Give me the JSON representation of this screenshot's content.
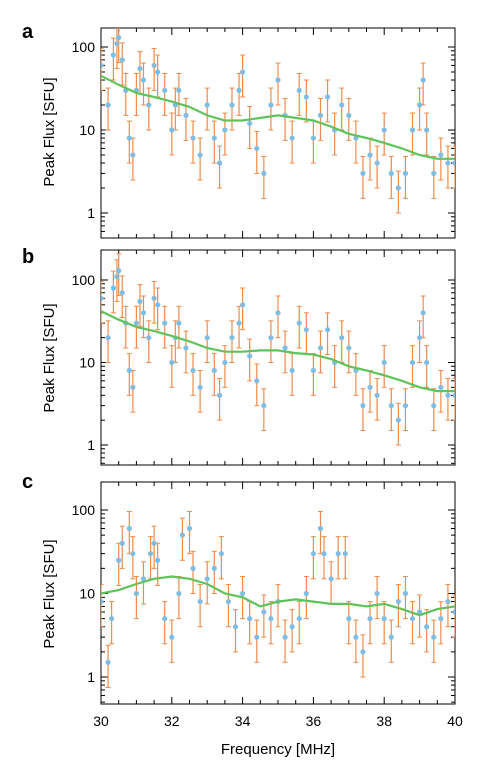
{
  "chart_data": [
    {
      "panel": "a",
      "type": "scatter",
      "xlabel": "",
      "ylabel": "Peak Flux [SFU]",
      "xlim": [
        30,
        40
      ],
      "ylim": [
        0.5,
        150
      ],
      "yscale": "log",
      "x_ticks": [
        30,
        32,
        34,
        36,
        38,
        40
      ],
      "y_tick_labels": [
        "1",
        "10",
        "100"
      ],
      "x_tick_labels_shown": false,
      "colors": {
        "points": "#7fbde3",
        "errorbars": "#ed8b4a",
        "trend": "#5fc25a"
      },
      "series": [
        {
          "name": "",
          "kind": "points",
          "x": [
            30.0,
            30.2,
            30.35,
            30.45,
            30.5,
            30.6,
            30.7,
            30.8,
            30.9,
            31.0,
            31.1,
            31.2,
            31.35,
            31.5,
            31.6,
            31.8,
            32.0,
            32.1,
            32.2,
            32.4,
            32.6,
            32.8,
            33.0,
            33.2,
            33.35,
            33.5,
            33.7,
            33.9,
            34.0,
            34.2,
            34.4,
            34.6,
            34.8,
            35.0,
            35.2,
            35.4,
            35.6,
            35.8,
            36.0,
            36.2,
            36.4,
            36.6,
            36.8,
            37.0,
            37.2,
            37.4,
            37.6,
            37.8,
            38.0,
            38.2,
            38.4,
            38.6,
            38.8,
            39.0,
            39.1,
            39.2,
            39.4,
            39.6,
            39.8,
            40.0
          ],
          "y": [
            60,
            20,
            80,
            110,
            130,
            70,
            30,
            8,
            5,
            30,
            55,
            40,
            20,
            60,
            50,
            30,
            10,
            20,
            30,
            15,
            8,
            5,
            20,
            8,
            4,
            10,
            20,
            30,
            50,
            12,
            6,
            3,
            20,
            40,
            15,
            8,
            30,
            25,
            8,
            15,
            25,
            10,
            20,
            15,
            8,
            3,
            5,
            4,
            10,
            3,
            2,
            3,
            10,
            20,
            40,
            10,
            3,
            5,
            4,
            4
          ]
        },
        {
          "name": "",
          "kind": "trend",
          "x": [
            30,
            30.5,
            31,
            31.5,
            32,
            32.5,
            33,
            33.5,
            34,
            34.5,
            35,
            35.5,
            36,
            36.5,
            37,
            37.5,
            38,
            38.5,
            39,
            39.5,
            40
          ],
          "y": [
            45,
            35,
            28,
            25,
            22,
            19,
            15,
            13,
            13,
            14,
            15,
            14,
            13,
            11,
            9,
            8,
            7,
            6,
            5,
            4.5,
            4.5
          ]
        }
      ]
    },
    {
      "panel": "b",
      "type": "scatter",
      "xlabel": "",
      "ylabel": "Peak Flux [SFU]",
      "xlim": [
        30,
        40
      ],
      "ylim": [
        0.5,
        150
      ],
      "yscale": "log",
      "x_ticks": [
        30,
        32,
        34,
        36,
        38,
        40
      ],
      "y_tick_labels": [
        "1",
        "10",
        "100"
      ],
      "x_tick_labels_shown": false,
      "colors": {
        "points": "#7fbde3",
        "errorbars": "#ed8b4a",
        "trend": "#5fc25a"
      },
      "series": [
        {
          "name": "",
          "kind": "points",
          "x": [
            30.0,
            30.2,
            30.35,
            30.45,
            30.5,
            30.6,
            30.7,
            30.8,
            30.9,
            31.0,
            31.1,
            31.2,
            31.35,
            31.5,
            31.6,
            31.8,
            32.0,
            32.1,
            32.2,
            32.4,
            32.6,
            32.8,
            33.0,
            33.2,
            33.35,
            33.5,
            33.7,
            33.9,
            34.0,
            34.2,
            34.4,
            34.6,
            34.8,
            35.0,
            35.2,
            35.4,
            35.6,
            35.8,
            36.0,
            36.2,
            36.4,
            36.6,
            36.8,
            37.0,
            37.2,
            37.4,
            37.6,
            37.8,
            38.0,
            38.2,
            38.4,
            38.6,
            38.8,
            39.0,
            39.1,
            39.2,
            39.4,
            39.6,
            39.8,
            40.0
          ],
          "y": [
            60,
            20,
            80,
            110,
            130,
            70,
            30,
            8,
            5,
            30,
            55,
            40,
            20,
            60,
            50,
            30,
            10,
            20,
            30,
            15,
            8,
            5,
            20,
            8,
            4,
            10,
            20,
            30,
            50,
            12,
            6,
            3,
            20,
            40,
            15,
            8,
            30,
            25,
            8,
            15,
            25,
            10,
            20,
            15,
            8,
            3,
            5,
            4,
            10,
            3,
            2,
            3,
            10,
            20,
            40,
            10,
            3,
            5,
            4,
            4
          ]
        },
        {
          "name": "",
          "kind": "trend",
          "x": [
            30,
            30.5,
            31,
            31.5,
            32,
            32.5,
            33,
            33.5,
            34,
            34.5,
            35,
            35.5,
            36,
            36.5,
            37,
            37.5,
            38,
            38.5,
            39,
            39.5,
            40
          ],
          "y": [
            42,
            33,
            27,
            24,
            21,
            18,
            15,
            13.5,
            13.5,
            14,
            14,
            13,
            12.5,
            11,
            9,
            8,
            7,
            6,
            5,
            4.5,
            4.5
          ]
        }
      ]
    },
    {
      "panel": "c",
      "type": "scatter",
      "xlabel": "Frequency [MHz]",
      "ylabel": "Peak Flux [SFU]",
      "xlim": [
        30,
        40
      ],
      "ylim": [
        0.5,
        150
      ],
      "yscale": "log",
      "x_ticks": [
        30,
        32,
        34,
        36,
        38,
        40
      ],
      "x_tick_labels": [
        "30",
        "32",
        "34",
        "36",
        "38",
        "40"
      ],
      "y_tick_labels": [
        "1",
        "10",
        "100"
      ],
      "x_tick_labels_shown": true,
      "colors": {
        "points": "#7fbde3",
        "errorbars": "#ed8b4a",
        "trend": "#5fc25a"
      },
      "series": [
        {
          "name": "",
          "kind": "points",
          "x": [
            30.0,
            30.2,
            30.3,
            30.5,
            30.6,
            30.8,
            30.9,
            31.0,
            31.2,
            31.4,
            31.5,
            31.6,
            31.8,
            32.0,
            32.2,
            32.3,
            32.5,
            32.6,
            32.8,
            33.0,
            33.2,
            33.4,
            33.6,
            33.8,
            34.0,
            34.2,
            34.4,
            34.6,
            34.8,
            35.0,
            35.2,
            35.4,
            35.6,
            35.8,
            36.0,
            36.2,
            36.3,
            36.5,
            36.7,
            36.9,
            37.0,
            37.2,
            37.4,
            37.6,
            37.8,
            38.0,
            38.2,
            38.4,
            38.6,
            38.8,
            39.0,
            39.2,
            39.4,
            39.6,
            39.8,
            40.0
          ],
          "y": [
            8,
            1.5,
            5,
            25,
            40,
            60,
            30,
            10,
            15,
            30,
            40,
            25,
            5,
            3,
            10,
            50,
            60,
            20,
            8,
            15,
            20,
            30,
            8,
            4,
            10,
            5,
            3,
            6,
            5,
            8,
            3,
            4,
            5,
            10,
            30,
            60,
            30,
            15,
            30,
            30,
            5,
            3,
            2,
            5,
            10,
            5,
            3,
            8,
            10,
            5,
            6,
            4,
            3,
            5,
            8,
            6
          ]
        },
        {
          "name": "",
          "kind": "trend",
          "x": [
            30,
            30.5,
            31,
            31.5,
            32,
            32.5,
            33,
            33.5,
            34,
            34.5,
            35,
            35.5,
            36,
            36.5,
            37,
            37.5,
            38,
            38.5,
            39,
            39.5,
            40
          ],
          "y": [
            10,
            11,
            13,
            15,
            16,
            15,
            13,
            10,
            9,
            7,
            8,
            8.5,
            8,
            7.5,
            7.5,
            7,
            7.5,
            6.5,
            5.5,
            6.5,
            7
          ]
        }
      ]
    }
  ]
}
